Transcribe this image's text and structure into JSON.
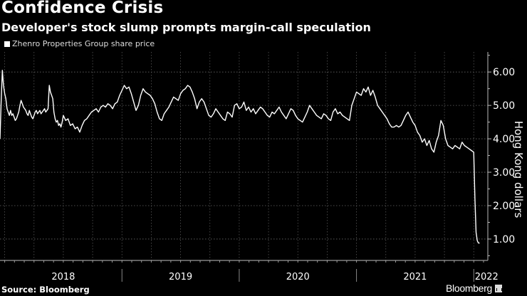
{
  "header": {
    "title": "Confidence Crisis",
    "subtitle": "Developer's stock slump prompts margin-call speculation"
  },
  "footer": {
    "source": "Source: Bloomberg",
    "brand": "Bloomberg"
  },
  "chart_data": {
    "type": "line",
    "title": "Confidence Crisis",
    "subtitle": "Developer's stock slump prompts margin-call speculation",
    "legend": [
      {
        "name": "Zhenro Properties Group share price",
        "color": "#ffffff"
      }
    ],
    "legend_position": "top-left",
    "xlabel": "",
    "ylabel": "Hong Kong dollars",
    "y_axis_side": "right",
    "ylim": [
      0.36,
      6.6
    ],
    "yticks": [
      1.0,
      2.0,
      3.0,
      4.0,
      5.0,
      6.0
    ],
    "ytick_labels": [
      "1.00",
      "2.00",
      "3.00",
      "4.00",
      "5.00",
      "6.00"
    ],
    "x_categories": [
      "2018",
      "2019",
      "2020",
      "2021",
      "2022"
    ],
    "xlim": [
      2017.96,
      2022.12
    ],
    "grid": true,
    "series": [
      {
        "name": "Zhenro Properties Group share price",
        "x": [
          2017.96,
          2017.97,
          2017.98,
          2017.99,
          2018.0,
          2018.01,
          2018.02,
          2018.03,
          2018.04,
          2018.05,
          2018.06,
          2018.07,
          2018.08,
          2018.09,
          2018.1,
          2018.11,
          2018.12,
          2018.13,
          2018.14,
          2018.15,
          2018.16,
          2018.17,
          2018.18,
          2018.19,
          2018.2,
          2018.21,
          2018.22,
          2018.23,
          2018.24,
          2018.25,
          2018.26,
          2018.27,
          2018.28,
          2018.29,
          2018.3,
          2018.31,
          2018.32,
          2018.33,
          2018.34,
          2018.35,
          2018.36,
          2018.37,
          2018.38,
          2018.39,
          2018.4,
          2018.41,
          2018.42,
          2018.43,
          2018.44,
          2018.45,
          2018.46,
          2018.47,
          2018.48,
          2018.49,
          2018.5,
          2018.52,
          2018.54,
          2018.56,
          2018.58,
          2018.6,
          2018.62,
          2018.64,
          2018.66,
          2018.68,
          2018.7,
          2018.72,
          2018.74,
          2018.76,
          2018.78,
          2018.8,
          2018.82,
          2018.84,
          2018.86,
          2018.88,
          2018.9,
          2018.92,
          2018.94,
          2018.96,
          2018.98,
          2019.0,
          2019.02,
          2019.04,
          2019.06,
          2019.08,
          2019.1,
          2019.12,
          2019.14,
          2019.16,
          2019.18,
          2019.2,
          2019.22,
          2019.24,
          2019.26,
          2019.28,
          2019.3,
          2019.32,
          2019.34,
          2019.36,
          2019.38,
          2019.4,
          2019.42,
          2019.44,
          2019.46,
          2019.48,
          2019.5,
          2019.52,
          2019.54,
          2019.56,
          2019.58,
          2019.6,
          2019.62,
          2019.64,
          2019.66,
          2019.68,
          2019.7,
          2019.72,
          2019.74,
          2019.76,
          2019.78,
          2019.8,
          2019.82,
          2019.84,
          2019.86,
          2019.88,
          2019.9,
          2019.92,
          2019.94,
          2019.96,
          2019.98,
          2020.0,
          2020.02,
          2020.04,
          2020.06,
          2020.08,
          2020.1,
          2020.12,
          2020.14,
          2020.16,
          2020.18,
          2020.2,
          2020.22,
          2020.24,
          2020.26,
          2020.28,
          2020.3,
          2020.32,
          2020.34,
          2020.36,
          2020.38,
          2020.4,
          2020.42,
          2020.44,
          2020.46,
          2020.48,
          2020.5,
          2020.52,
          2020.54,
          2020.56,
          2020.58,
          2020.6,
          2020.62,
          2020.64,
          2020.66,
          2020.68,
          2020.7,
          2020.72,
          2020.74,
          2020.76,
          2020.78,
          2020.8,
          2020.82,
          2020.84,
          2020.86,
          2020.88,
          2020.9,
          2020.92,
          2020.94,
          2020.96,
          2020.98,
          2021.0,
          2021.02,
          2021.04,
          2021.06,
          2021.08,
          2021.1,
          2021.12,
          2021.14,
          2021.16,
          2021.18,
          2021.2,
          2021.22,
          2021.24,
          2021.26,
          2021.28,
          2021.3,
          2021.32,
          2021.34,
          2021.36,
          2021.38,
          2021.4,
          2021.42,
          2021.44,
          2021.46,
          2021.48,
          2021.5,
          2021.52,
          2021.54,
          2021.56,
          2021.58,
          2021.6,
          2021.62,
          2021.64,
          2021.66,
          2021.68,
          2021.7,
          2021.72,
          2021.74,
          2021.76,
          2021.78,
          2021.8,
          2021.82,
          2021.84,
          2021.86,
          2021.88,
          2021.9,
          2021.92,
          2021.94,
          2021.96,
          2021.98,
          2022.0,
          2022.01,
          2022.02,
          2022.03,
          2022.04,
          2022.05
        ],
        "y": [
          4.0,
          5.1,
          6.05,
          5.6,
          5.35,
          5.2,
          4.9,
          4.8,
          4.7,
          4.85,
          4.7,
          4.75,
          4.65,
          4.55,
          4.6,
          4.7,
          4.8,
          5.0,
          5.15,
          5.05,
          4.95,
          4.9,
          4.85,
          4.75,
          4.7,
          4.85,
          4.75,
          4.65,
          4.6,
          4.7,
          4.8,
          4.85,
          4.75,
          4.8,
          4.85,
          4.75,
          4.8,
          4.85,
          4.9,
          4.8,
          4.85,
          4.9,
          5.6,
          5.4,
          5.3,
          5.2,
          4.8,
          4.6,
          4.5,
          4.55,
          4.4,
          4.45,
          4.35,
          4.5,
          4.7,
          4.55,
          4.6,
          4.4,
          4.45,
          4.3,
          4.35,
          4.2,
          4.4,
          4.55,
          4.6,
          4.7,
          4.8,
          4.85,
          4.9,
          4.8,
          4.95,
          5.0,
          4.95,
          5.05,
          5.0,
          4.9,
          5.05,
          5.1,
          5.3,
          5.45,
          5.6,
          5.5,
          5.55,
          5.35,
          5.1,
          4.85,
          5.0,
          5.3,
          5.5,
          5.4,
          5.35,
          5.3,
          5.2,
          5.05,
          4.8,
          4.6,
          4.55,
          4.75,
          4.85,
          4.95,
          5.1,
          5.25,
          5.2,
          5.15,
          5.35,
          5.45,
          5.5,
          5.6,
          5.55,
          5.4,
          5.2,
          4.9,
          5.1,
          5.2,
          5.1,
          4.9,
          4.7,
          4.65,
          4.75,
          4.9,
          4.8,
          4.7,
          4.6,
          4.55,
          4.8,
          4.75,
          4.65,
          5.0,
          5.05,
          4.9,
          4.95,
          5.1,
          4.85,
          4.95,
          4.8,
          4.9,
          4.75,
          4.85,
          4.95,
          4.9,
          4.8,
          4.7,
          4.65,
          4.8,
          4.75,
          4.85,
          4.95,
          4.8,
          4.7,
          4.6,
          4.75,
          4.9,
          4.85,
          4.7,
          4.6,
          4.55,
          4.5,
          4.65,
          4.8,
          5.0,
          4.9,
          4.8,
          4.7,
          4.65,
          4.6,
          4.75,
          4.7,
          4.6,
          4.55,
          4.8,
          4.9,
          4.75,
          4.8,
          4.7,
          4.65,
          4.6,
          4.55,
          5.0,
          5.2,
          5.4,
          5.35,
          5.3,
          5.5,
          5.4,
          5.55,
          5.3,
          5.45,
          5.25,
          5.0,
          4.9,
          4.8,
          4.7,
          4.6,
          4.45,
          4.35,
          4.35,
          4.4,
          4.35,
          4.4,
          4.55,
          4.7,
          4.8,
          4.65,
          4.5,
          4.4,
          4.2,
          4.1,
          3.9,
          4.0,
          3.8,
          3.95,
          3.7,
          3.6,
          3.9,
          4.1,
          4.55,
          4.4,
          4.0,
          3.8,
          3.75,
          3.7,
          3.8,
          3.75,
          3.7,
          3.9,
          3.8,
          3.75,
          3.7,
          3.65,
          3.6,
          2.2,
          1.2,
          0.95,
          0.88,
          0.88
        ]
      }
    ]
  }
}
